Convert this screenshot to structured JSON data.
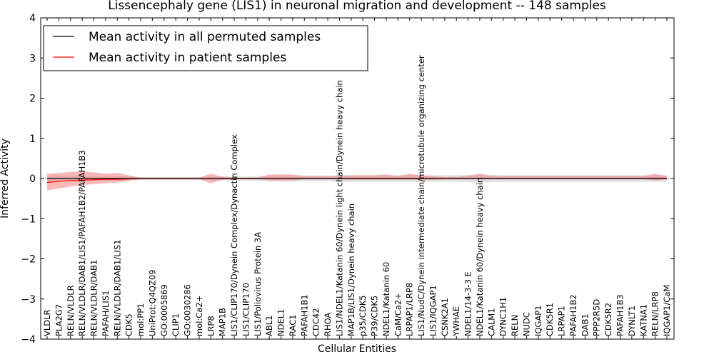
{
  "chart_data": {
    "type": "line",
    "title": "Lissencephaly gene (LIS1) in neuronal migration and development -- 148 samples",
    "xlabel": "Cellular Entities",
    "ylabel": "Inferred Activity",
    "ylim": [
      -4,
      4
    ],
    "yticks": [
      -4,
      -3,
      -2,
      -1,
      0,
      1,
      2,
      3,
      4
    ],
    "ytick_labels": [
      "−4",
      "−3",
      "−2",
      "−1",
      "0",
      "1",
      "2",
      "3",
      "4"
    ],
    "legend_position": "top-left",
    "categories": [
      "VLDLR",
      "PLA2G7",
      "RELN/VLDLR",
      "RELN/VLDLR/DAB1/LIS1/PAFAH1B2/PAFAH1B3",
      "RELN/VLDLR/DAB1",
      "PAFAH/LIS1",
      "RELN/VLDLR/DAB1/LIS1",
      "CDK5",
      "mol:PP1",
      "UniProt:Q4QZ09",
      "GO:0005869",
      "CLIP1",
      "GO:0030286",
      "mol:Ca2+",
      "LRP8",
      "MAP1B",
      "LIS1/CLIP170/Dynein Complex/Dynactin Complex",
      "LIS1/CLIP170",
      "LIS1/Poliovirus Protein 3A",
      "ABL1",
      "NDEL1",
      "RAC1",
      "PAFAH1B1",
      "CDC42",
      "RHOA",
      "LIS1/NDEL1/Katanin 60/Dynein light chain/Dynein heavy chain",
      "MAP1B/LIS1/Dynein heavy chain",
      "p35/CDK5",
      "P39/CDK5",
      "NDEL1/Katanin 60",
      "CaM/Ca2+",
      "LRPAP1/LRP8",
      "LIS1/NudC/Dynein intermediate chain/microtubule organizing center",
      "LIS1/IQGAP1",
      "CSNK2A1",
      "YWHAE",
      "NDEL1/14-3-3 E",
      "NDEL1/Katanin 60/Dynein heavy chain",
      "CALM1",
      "DYNC1H1",
      "RELN",
      "NUDC",
      "IQGAP1",
      "CDK5R1",
      "LRPAP1",
      "PAFAH1B2",
      "DAB1",
      "PPP2R5D",
      "CDK5R2",
      "PAFAH1B3",
      "DYNLT1",
      "KATNA1",
      "RELN/LRP8",
      "IQGAP1/CaM"
    ],
    "series": [
      {
        "name": "Mean activity in all permuted samples",
        "color": "#000000",
        "values": [
          0.0,
          0.0,
          0.0,
          0.0,
          0.0,
          0.0,
          0.0,
          0.0,
          0.0,
          0.0,
          0.0,
          0.0,
          0.0,
          0.0,
          0.0,
          0.0,
          0.0,
          0.0,
          0.0,
          0.0,
          0.0,
          0.0,
          0.0,
          0.0,
          0.0,
          0.0,
          0.0,
          0.0,
          0.0,
          0.0,
          0.0,
          0.0,
          0.0,
          0.0,
          0.0,
          0.0,
          0.0,
          0.0,
          0.0,
          0.0,
          0.0,
          0.0,
          0.0,
          0.0,
          0.0,
          0.0,
          0.0,
          0.0,
          0.0,
          0.0,
          0.0,
          0.0,
          0.0,
          0.0
        ],
        "band_lower": [
          -0.08,
          -0.08,
          -0.07,
          -0.07,
          -0.07,
          -0.06,
          -0.06,
          -0.05,
          -0.04,
          -0.04,
          -0.04,
          -0.04,
          -0.04,
          -0.04,
          -0.05,
          -0.05,
          -0.05,
          -0.05,
          -0.06,
          -0.07,
          -0.08,
          -0.08,
          -0.07,
          -0.07,
          -0.07,
          -0.08,
          -0.08,
          -0.08,
          -0.08,
          -0.08,
          -0.08,
          -0.08,
          -0.08,
          -0.08,
          -0.08,
          -0.08,
          -0.09,
          -0.1,
          -0.09,
          -0.08,
          -0.08,
          -0.08,
          -0.08,
          -0.08,
          -0.08,
          -0.08,
          -0.08,
          -0.08,
          -0.08,
          -0.08,
          -0.08,
          -0.08,
          -0.08,
          -0.08
        ],
        "band_upper": [
          0.08,
          0.08,
          0.07,
          0.07,
          0.07,
          0.06,
          0.06,
          0.05,
          0.04,
          0.04,
          0.04,
          0.04,
          0.04,
          0.04,
          0.05,
          0.05,
          0.05,
          0.05,
          0.06,
          0.07,
          0.08,
          0.08,
          0.07,
          0.07,
          0.07,
          0.08,
          0.08,
          0.08,
          0.08,
          0.08,
          0.08,
          0.08,
          0.08,
          0.08,
          0.08,
          0.08,
          0.09,
          0.1,
          0.09,
          0.08,
          0.08,
          0.08,
          0.08,
          0.08,
          0.08,
          0.08,
          0.08,
          0.08,
          0.08,
          0.08,
          0.08,
          0.08,
          0.08,
          0.08
        ]
      },
      {
        "name": "Mean activity in patient samples",
        "color": "#ff0000",
        "values": [
          -0.1,
          -0.07,
          -0.05,
          -0.04,
          -0.03,
          -0.02,
          -0.02,
          -0.01,
          0.0,
          0.0,
          0.0,
          0.0,
          0.0,
          0.0,
          0.0,
          0.0,
          0.0,
          0.0,
          0.0,
          0.0,
          0.0,
          0.0,
          0.0,
          0.0,
          0.0,
          0.0,
          0.0,
          0.0,
          0.0,
          0.0,
          0.0,
          0.0,
          0.0,
          0.0,
          0.0,
          0.0,
          0.0,
          0.0,
          0.0,
          0.0,
          0.0,
          0.0,
          0.0,
          0.0,
          0.0,
          0.0,
          0.0,
          0.0,
          0.0,
          0.0,
          0.0,
          0.0,
          0.0,
          0.0
        ],
        "band_lower": [
          -0.3,
          -0.25,
          -0.2,
          -0.16,
          -0.14,
          -0.12,
          -0.1,
          -0.06,
          -0.02,
          -0.02,
          -0.02,
          -0.02,
          -0.02,
          -0.02,
          -0.12,
          -0.03,
          -0.02,
          -0.02,
          -0.02,
          -0.05,
          -0.05,
          -0.05,
          -0.02,
          -0.02,
          -0.02,
          -0.02,
          -0.03,
          -0.03,
          -0.03,
          -0.03,
          -0.03,
          -0.03,
          -0.03,
          -0.03,
          -0.02,
          -0.02,
          -0.02,
          -0.02,
          -0.02,
          -0.02,
          -0.02,
          -0.02,
          -0.02,
          -0.02,
          -0.02,
          -0.02,
          -0.02,
          -0.02,
          -0.02,
          -0.02,
          -0.02,
          -0.02,
          -0.05,
          -0.02
        ],
        "band_upper": [
          0.12,
          0.14,
          0.16,
          0.18,
          0.15,
          0.12,
          0.14,
          0.08,
          0.02,
          0.02,
          0.02,
          0.02,
          0.02,
          0.02,
          0.12,
          0.05,
          0.02,
          0.02,
          0.02,
          0.1,
          0.1,
          0.1,
          0.06,
          0.06,
          0.06,
          0.06,
          0.08,
          0.08,
          0.08,
          0.1,
          0.06,
          0.12,
          0.08,
          0.06,
          0.04,
          0.04,
          0.06,
          0.12,
          0.06,
          0.06,
          0.06,
          0.06,
          0.06,
          0.06,
          0.06,
          0.06,
          0.06,
          0.06,
          0.06,
          0.06,
          0.06,
          0.06,
          0.12,
          0.06
        ]
      }
    ]
  }
}
